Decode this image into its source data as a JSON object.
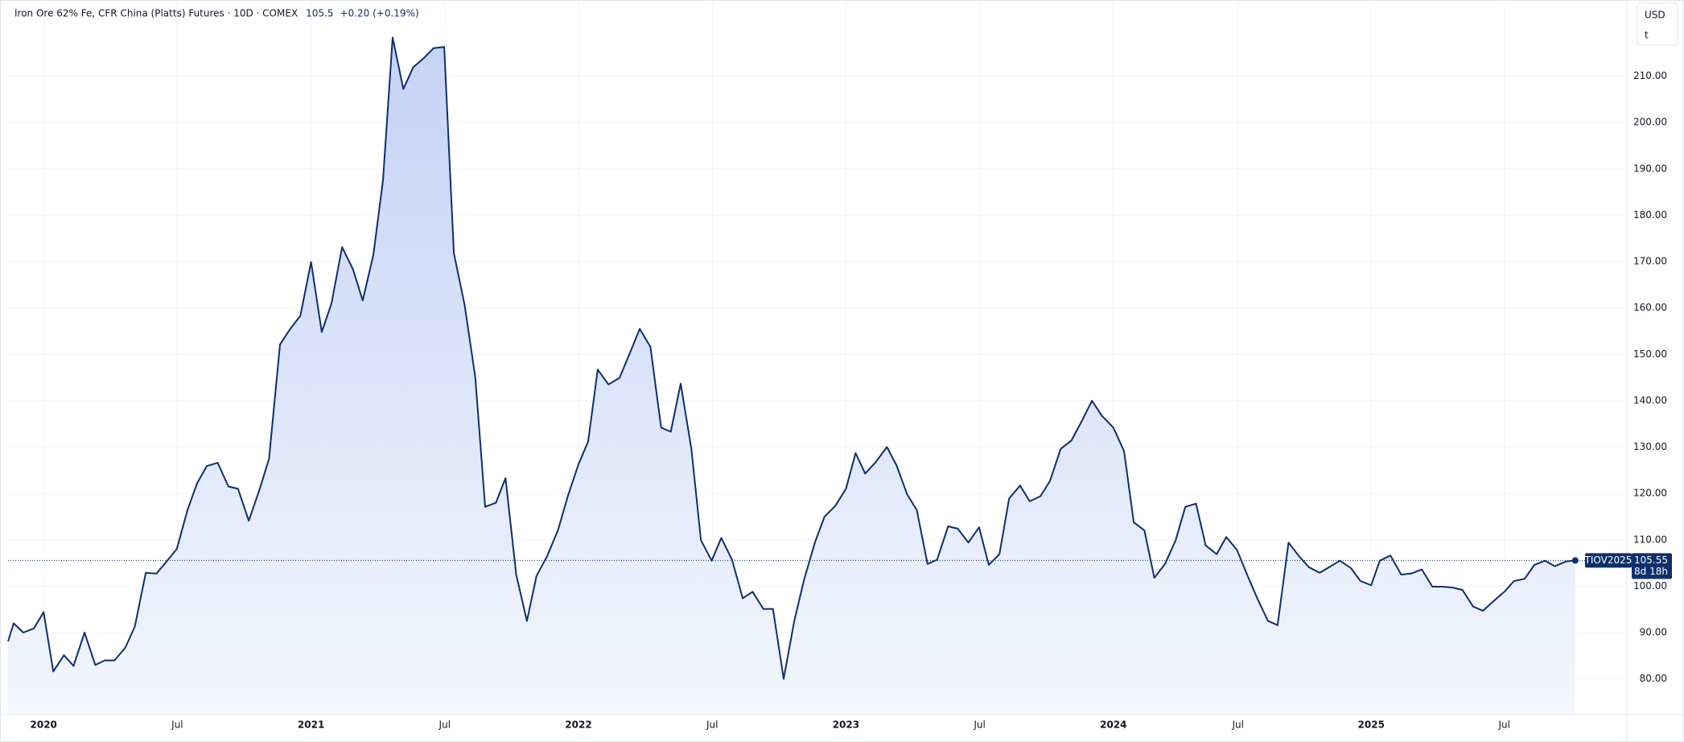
{
  "chart_data": {
    "type": "area",
    "title": "Iron Ore 62% Fe, CFR China (Platts) Futures · 10D · COMEX",
    "change": "+0.20 (+0.19%)",
    "currency": "USD",
    "unit": "t",
    "symbol_label": "TIOV2025",
    "countdown": "8d 18h",
    "color": "#0d2f6b",
    "grid": true,
    "xlim": [
      2019.867,
      2025.92
    ],
    "ylim": [
      72.3,
      226.4
    ],
    "xticks": [
      {
        "value": 2020,
        "label": "2020"
      },
      {
        "value": 2020.5,
        "label": "Jul"
      },
      {
        "value": 2021,
        "label": "2021"
      },
      {
        "value": 2021.5,
        "label": "Jul"
      },
      {
        "value": 2022,
        "label": "2022"
      },
      {
        "value": 2022.5,
        "label": "Jul"
      },
      {
        "value": 2023,
        "label": "2023"
      },
      {
        "value": 2023.5,
        "label": "Jul"
      },
      {
        "value": 2024,
        "label": "2024"
      },
      {
        "value": 2024.466,
        "label": "Jul"
      },
      {
        "value": 2024.964,
        "label": "2025"
      },
      {
        "value": 2025.462,
        "label": "Jul"
      }
    ],
    "yticks": [
      {
        "value": 80,
        "label": "80.00"
      },
      {
        "value": 90,
        "label": "90.00"
      },
      {
        "value": 100,
        "label": "100.00"
      },
      {
        "value": 110,
        "label": "110.00"
      },
      {
        "value": 120,
        "label": "120.00"
      },
      {
        "value": 130,
        "label": "130.00"
      },
      {
        "value": 140,
        "label": "140.00"
      },
      {
        "value": 150,
        "label": "150.00"
      },
      {
        "value": 160,
        "label": "160.00"
      },
      {
        "value": 170,
        "label": "170.00"
      },
      {
        "value": 180,
        "label": "180.00"
      },
      {
        "value": 190,
        "label": "190.00"
      },
      {
        "value": 200,
        "label": "200.00"
      },
      {
        "value": 210,
        "label": "210.00"
      }
    ],
    "x": [
      2019.867,
      2019.888,
      2019.924,
      2019.964,
      2020.0,
      2020.036,
      2020.076,
      2020.112,
      2020.153,
      2020.193,
      2020.229,
      2020.265,
      2020.305,
      2020.341,
      2020.382,
      2020.422,
      2020.458,
      2020.498,
      2020.538,
      2020.574,
      2020.61,
      2020.651,
      2020.691,
      2020.727,
      2020.767,
      2020.807,
      2020.843,
      2020.884,
      2020.92,
      2020.96,
      2021.0,
      2021.04,
      2021.076,
      2021.116,
      2021.157,
      2021.193,
      2021.233,
      2021.269,
      2021.305,
      2021.345,
      2021.382,
      2021.422,
      2021.458,
      2021.498,
      2021.534,
      2021.574,
      2021.614,
      2021.651,
      2021.691,
      2021.727,
      2021.767,
      2021.807,
      2021.843,
      2021.884,
      2021.924,
      2021.96,
      2022.0,
      2022.036,
      2022.072,
      2022.112,
      2022.153,
      2022.193,
      2022.229,
      2022.269,
      2022.309,
      2022.345,
      2022.382,
      2022.422,
      2022.458,
      2022.498,
      2022.534,
      2022.574,
      2022.614,
      2022.651,
      2022.691,
      2022.727,
      2022.767,
      2022.807,
      2022.843,
      2022.884,
      2022.92,
      2022.96,
      2023.0,
      2023.036,
      2023.072,
      2023.112,
      2023.153,
      2023.189,
      2023.229,
      2023.265,
      2023.305,
      2023.341,
      2023.382,
      2023.418,
      2023.458,
      2023.498,
      2023.534,
      2023.574,
      2023.61,
      2023.651,
      2023.687,
      2023.727,
      2023.763,
      2023.803,
      2023.843,
      2023.88,
      2023.92,
      2023.956,
      2024.0,
      2024.04,
      2024.076,
      2024.116,
      2024.153,
      2024.193,
      2024.233,
      2024.269,
      2024.309,
      2024.345,
      2024.386,
      2024.422,
      2024.462,
      2024.502,
      2024.538,
      2024.578,
      2024.614,
      2024.655,
      2024.695,
      2024.731,
      2024.771,
      2024.807,
      2024.847,
      2024.888,
      2024.924,
      2024.964,
      2024.996,
      2025.036,
      2025.076,
      2025.112,
      2025.153,
      2025.193,
      2025.229,
      2025.269,
      2025.305,
      2025.345,
      2025.382,
      2025.422,
      2025.462,
      2025.498,
      2025.538,
      2025.574,
      2025.614,
      2025.651,
      2025.691,
      2025.727
    ],
    "values": [
      88.1,
      92.0,
      90.0,
      90.9,
      94.4,
      81.6,
      85.1,
      82.8,
      90.0,
      83.0,
      84.0,
      84.0,
      86.7,
      91.3,
      102.9,
      102.7,
      105.2,
      108.0,
      116.4,
      122.2,
      125.9,
      126.6,
      121.5,
      121.0,
      114.1,
      120.8,
      127.5,
      152.1,
      155.3,
      158.3,
      169.9,
      154.8,
      160.9,
      173.1,
      168.3,
      161.6,
      171.5,
      187.5,
      218.3,
      207.2,
      211.9,
      213.9,
      216.0,
      216.3,
      171.8,
      160.7,
      145.1,
      117.1,
      118.0,
      123.3,
      102.5,
      92.5,
      102.2,
      106.6,
      112.2,
      119.4,
      126.3,
      131.2,
      146.7,
      143.5,
      144.9,
      150.4,
      155.5,
      151.6,
      134.2,
      133.3,
      143.7,
      129.6,
      109.9,
      105.5,
      110.4,
      105.7,
      97.4,
      98.8,
      95.1,
      95.1,
      80.0,
      92.5,
      101.3,
      109.4,
      115.0,
      117.3,
      121.0,
      128.7,
      124.3,
      126.8,
      130.0,
      126.1,
      119.8,
      116.4,
      104.8,
      105.7,
      112.9,
      112.4,
      109.4,
      112.7,
      104.6,
      106.9,
      118.9,
      121.7,
      118.3,
      119.4,
      122.7,
      129.6,
      131.4,
      135.4,
      140.0,
      136.8,
      134.2,
      129.1,
      113.8,
      112.0,
      101.8,
      104.8,
      109.9,
      117.1,
      117.8,
      108.8,
      106.9,
      110.6,
      107.8,
      102.2,
      97.4,
      92.5,
      91.6,
      109.4,
      106.4,
      104.1,
      102.9,
      104.1,
      105.5,
      103.9,
      101.1,
      100.2,
      105.5,
      106.6,
      102.5,
      102.7,
      103.6,
      99.9,
      99.9,
      99.7,
      99.2,
      95.6,
      94.7,
      96.8,
      98.8,
      101.1,
      101.6,
      104.6,
      105.5,
      104.3,
      105.3,
      105.55
    ]
  }
}
